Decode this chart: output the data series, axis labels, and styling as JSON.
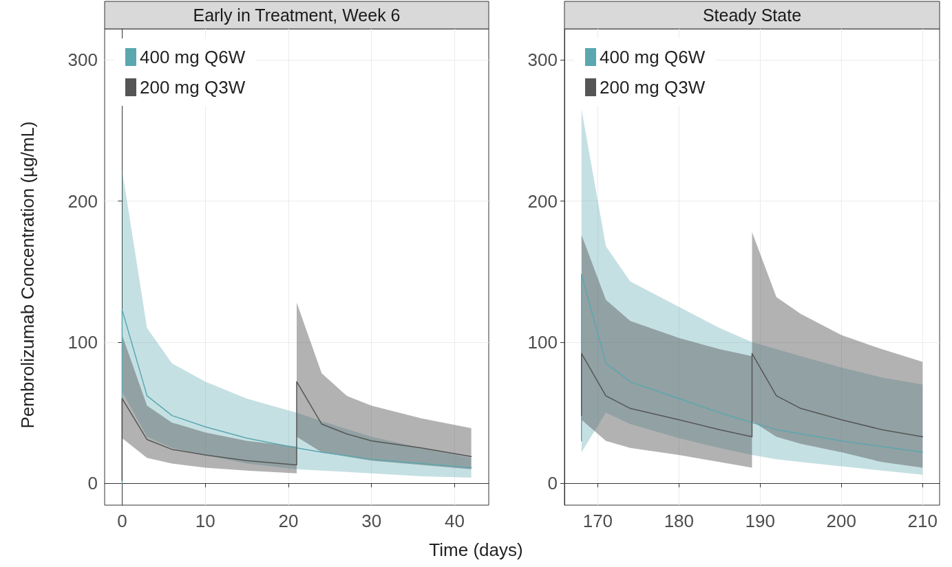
{
  "chart_data": [
    {
      "type": "line",
      "title": "Early in Treatment, Week 6",
      "xlabel": "Time (days)",
      "ylabel": "Pembrolizumab Concentration (µg/mL)",
      "xlim": [
        -2.1,
        44.1
      ],
      "xticks": [
        0,
        10,
        20,
        30,
        40
      ],
      "ylim": [
        -15.5,
        322
      ],
      "yticks": [
        0,
        100,
        200,
        300
      ],
      "grid": true,
      "legend": "top left",
      "marker": "none",
      "line_style": "solid",
      "series": [
        {
          "name": "400 mg Q6W",
          "color": "#5aa7b0",
          "x": [
            0,
            0,
            3,
            6,
            10,
            15,
            21,
            24,
            30,
            36,
            42
          ],
          "values": [
            0,
            123,
            62,
            48,
            40,
            32,
            25,
            22,
            17,
            14,
            11
          ],
          "lower": [
            0,
            65,
            33,
            25,
            20,
            14,
            10,
            9,
            7,
            5,
            4
          ],
          "upper": [
            0,
            222,
            110,
            85,
            72,
            60,
            50,
            44,
            33,
            25,
            18
          ]
        },
        {
          "name": "200 mg Q3W",
          "color": "#555555",
          "x": [
            0,
            0,
            3,
            6,
            10,
            15,
            21,
            21,
            24,
            27,
            30,
            36,
            42
          ],
          "values": [
            2,
            60,
            31,
            24,
            20,
            16,
            13,
            72,
            42,
            35,
            30,
            25,
            19
          ],
          "lower": [
            2,
            32,
            18,
            14,
            11,
            9,
            7,
            33,
            22,
            19,
            16,
            13,
            10
          ],
          "upper": [
            2,
            105,
            55,
            43,
            36,
            30,
            26,
            128,
            78,
            62,
            55,
            46,
            39
          ]
        }
      ]
    },
    {
      "type": "line",
      "title": "Steady State",
      "xlim": [
        165.9,
        212.1
      ],
      "xticks": [
        170,
        180,
        190,
        200,
        210
      ],
      "ylim": [
        -15.5,
        322
      ],
      "yticks": [
        0,
        100,
        200,
        300
      ],
      "grid": true,
      "legend": "top left",
      "marker": "none",
      "line_style": "solid",
      "series": [
        {
          "name": "400 mg Q6W",
          "color": "#5aa7b0",
          "x": [
            168,
            168,
            171,
            174,
            180,
            185,
            189,
            192,
            195,
            200,
            205,
            210
          ],
          "values": [
            30,
            148,
            85,
            72,
            60,
            50,
            43,
            38,
            35,
            30,
            26,
            22
          ],
          "lower": [
            22,
            22,
            50,
            42,
            32,
            25,
            20,
            17,
            15,
            12,
            9,
            6
          ],
          "upper": [
            30,
            265,
            168,
            143,
            125,
            110,
            100,
            95,
            90,
            82,
            75,
            70
          ]
        },
        {
          "name": "200 mg Q3W",
          "color": "#555555",
          "x": [
            168,
            168,
            171,
            174,
            180,
            185,
            189,
            189,
            192,
            195,
            200,
            205,
            210
          ],
          "values": [
            48,
            92,
            62,
            53,
            45,
            38,
            33,
            92,
            62,
            53,
            45,
            38,
            33
          ],
          "lower": [
            45,
            45,
            30,
            25,
            20,
            15,
            11,
            44,
            33,
            28,
            22,
            15,
            11
          ],
          "upper": [
            48,
            176,
            130,
            115,
            103,
            95,
            90,
            178,
            132,
            120,
            105,
            95,
            86
          ]
        }
      ]
    }
  ]
}
